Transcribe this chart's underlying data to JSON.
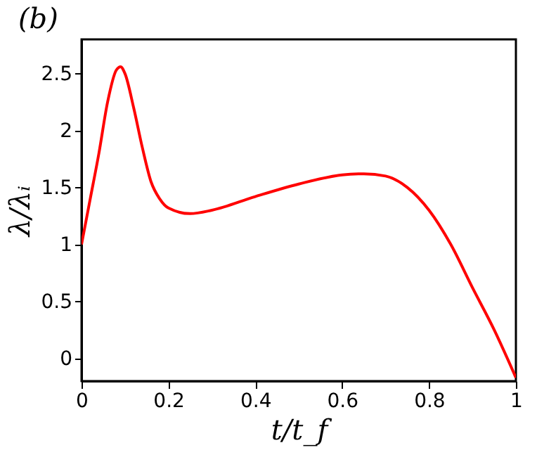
{
  "chart_data": {
    "type": "line",
    "title": "(b)",
    "xlabel": "t/t_f",
    "ylabel": "λ/λᵢ",
    "x": [
      0,
      0.02,
      0.04,
      0.06,
      0.08,
      0.09,
      0.1,
      0.12,
      0.14,
      0.16,
      0.18,
      0.2,
      0.25,
      0.3,
      0.4,
      0.5,
      0.6,
      0.65,
      0.7,
      0.75,
      0.8,
      0.85,
      0.9,
      0.95,
      1.0
    ],
    "series": [
      {
        "color": "#ff0000",
        "values": [
          1,
          1.4,
          1.8,
          2.25,
          2.53,
          2.56,
          2.5,
          2.2,
          1.85,
          1.55,
          1.4,
          1.32,
          1.27,
          1.3,
          1.42,
          1.53,
          1.61,
          1.62,
          1.6,
          1.5,
          1.3,
          1.0,
          0.62,
          0.25,
          -0.17
        ]
      }
    ],
    "xlim": [
      0,
      1
    ],
    "xticks": [
      0,
      0.2,
      0.4,
      0.6,
      0.8,
      1
    ],
    "ylim": [
      -0.2,
      2.8
    ],
    "yticks": [
      0,
      0.5,
      1,
      1.5,
      2,
      2.5
    ],
    "grid": false,
    "legend": false,
    "marker": "none",
    "line_style": "solid"
  }
}
